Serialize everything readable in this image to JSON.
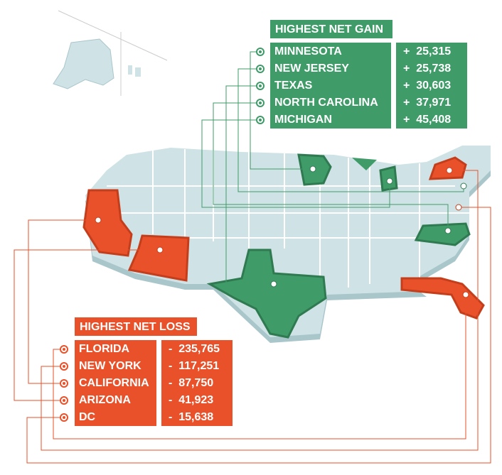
{
  "gain": {
    "title": "HIGHEST NET GAIN",
    "rows": [
      {
        "state": "MINNESOTA",
        "value": "+  25,315"
      },
      {
        "state": "NEW JERSEY",
        "value": "+  25,738"
      },
      {
        "state": "TEXAS",
        "value": "+  30,603"
      },
      {
        "state": "NORTH CAROLINA",
        "value": "+  37,971"
      },
      {
        "state": "MICHIGAN",
        "value": "+  45,408"
      }
    ]
  },
  "loss": {
    "title": "HIGHEST NET LOSS",
    "rows": [
      {
        "state": "FLORIDA",
        "value": "-  235,765"
      },
      {
        "state": "NEW YORK",
        "value": "-  117,251"
      },
      {
        "state": "CALIFORNIA",
        "value": "-  87,750"
      },
      {
        "state": "ARIZONA",
        "value": "-  41,923"
      },
      {
        "state": "DC",
        "value": "-  15,638"
      }
    ]
  }
}
